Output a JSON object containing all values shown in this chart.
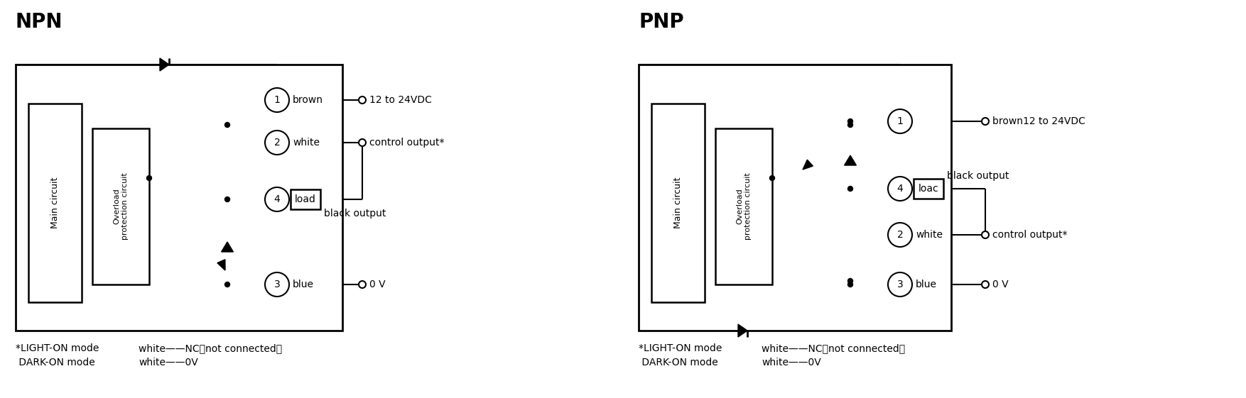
{
  "bg_color": "#ffffff",
  "title_npn": "NPN",
  "title_pnp": "PNP",
  "footer_left_line1": "*LIGHT-ON mode",
  "footer_left_line2": " DARK-ON mode",
  "footer_right_line1": "white——NC（not connected）",
  "footer_right_line2": "white——0V",
  "npn_brown": "brown",
  "npn_white": "white",
  "npn_blue": "blue",
  "npn_load": "load",
  "npn_vdc": "12 to 24VDC",
  "npn_ctrl": "control output*",
  "npn_black_out": "black output",
  "npn_0v": "0 V",
  "pnp_brown_vdc": "brown12 to 24VDC",
  "pnp_white": "white",
  "pnp_blue": "blue",
  "pnp_load": "loac",
  "pnp_ctrl": "control output*",
  "pnp_black_out": "black output",
  "pnp_0v": "0 V",
  "main_circuit": "Main circuit",
  "overload": "Overload\nprotection circuit"
}
